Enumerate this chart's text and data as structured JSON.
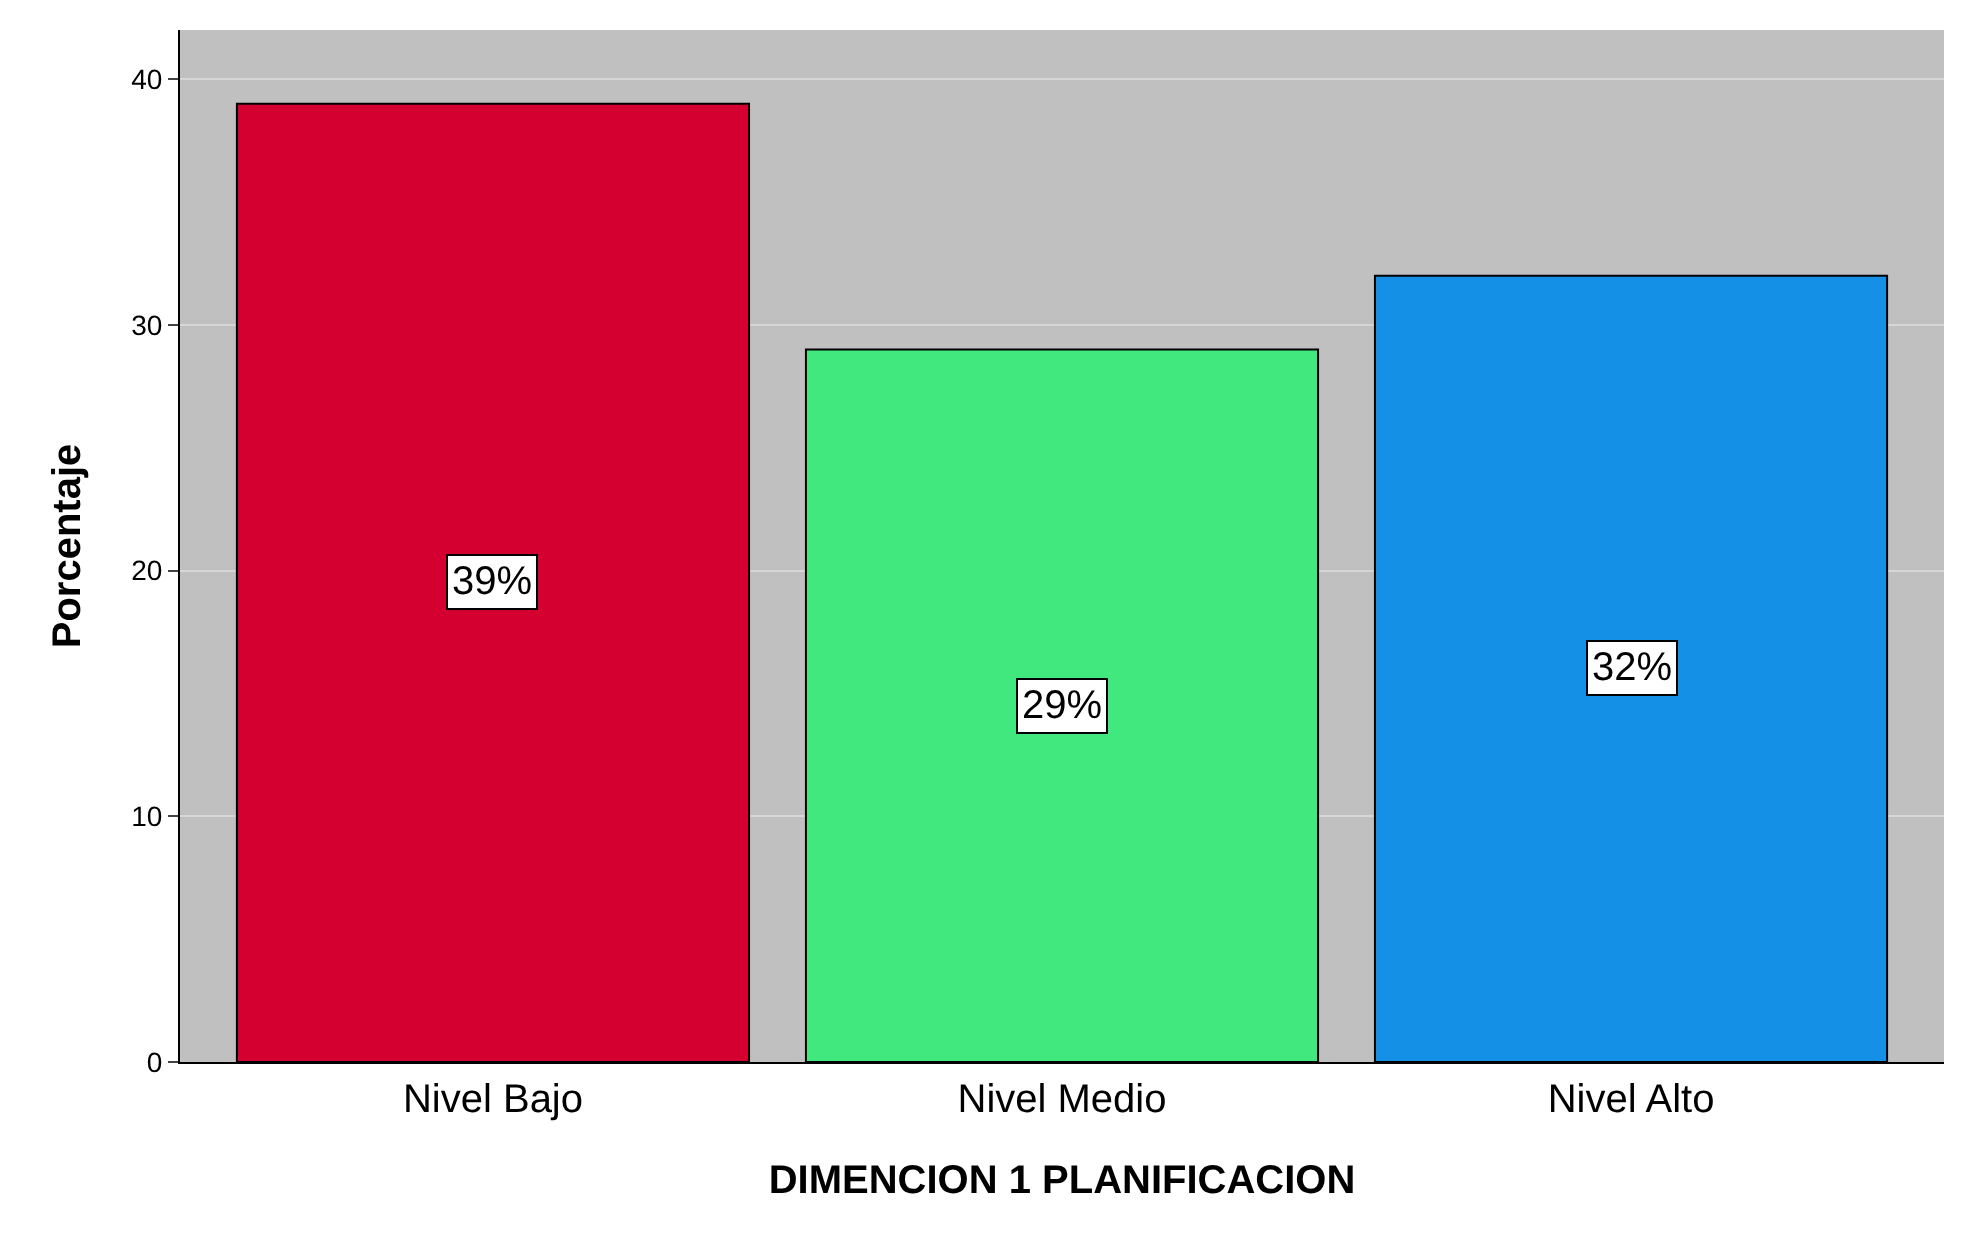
{
  "chart_data": {
    "type": "bar",
    "xlabel": "DIMENCION 1 PLANIFICACION",
    "ylabel": "Porcentaje",
    "categories": [
      "Nivel Bajo",
      "Nivel Medio",
      "Nivel Alto"
    ],
    "values": [
      39,
      29,
      32
    ],
    "colors": [
      "#d4002f",
      "#40e87e",
      "#1490e6"
    ],
    "value_labels": [
      "39%",
      "29%",
      "32%"
    ],
    "ylim": [
      0,
      42
    ],
    "yticks": [
      0,
      10,
      20,
      30,
      40
    ],
    "grid": "y",
    "legend": false
  }
}
